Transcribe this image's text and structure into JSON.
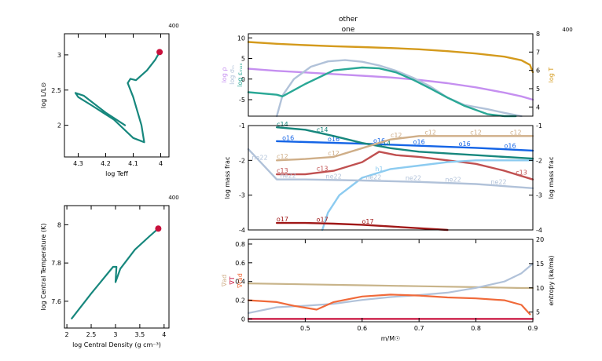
{
  "header": {
    "title_top": "other",
    "title_sub": "one",
    "model_number": "400"
  },
  "colors": {
    "teal": "#17877d",
    "red_marker": "#c8103c",
    "gold": "#d49a1c",
    "lilac": "#c58ff0",
    "steel": "#b1c2d9",
    "sea": "#2aa896",
    "blue": "#1464e6",
    "sky": "#8ccbf0",
    "brick": "#c05050",
    "tan": "#cfae88",
    "maroon": "#a01818",
    "green": "#1f8a4c",
    "orange": "#f06a3a",
    "khaki": "#c8b48a",
    "grid_axis": "#000000"
  },
  "chart_data": [
    {
      "id": "hr",
      "type": "line",
      "model_label": "400",
      "xlabel": "log Teff",
      "ylabel": "log L/L⊙",
      "xlim": [
        4.35,
        3.97
      ],
      "ylim": [
        1.55,
        3.3
      ],
      "xticks": [
        4.3,
        4.2,
        4.1,
        4
      ],
      "xtick_labels": [
        "4.3",
        "4.2",
        "4.1",
        "4"
      ],
      "yticks": [
        2,
        2.5,
        3
      ],
      "ytick_labels": [
        "2",
        "2.5",
        "3"
      ],
      "series": [
        {
          "color": "teal",
          "x": [
            4.13,
            4.2,
            4.28,
            4.31,
            4.3,
            4.25,
            4.17,
            4.1,
            4.06,
            4.07,
            4.1,
            4.12,
            4.11,
            4.09,
            4.05,
            4.02,
            4.004
          ],
          "y": [
            2.0,
            2.18,
            2.42,
            2.46,
            2.4,
            2.28,
            2.08,
            1.82,
            1.76,
            2.0,
            2.4,
            2.6,
            2.66,
            2.64,
            2.78,
            2.93,
            3.04
          ]
        }
      ],
      "marker": {
        "x": 4.004,
        "y": 3.04,
        "color": "red_marker"
      }
    },
    {
      "id": "central",
      "type": "line",
      "model_label": "400",
      "xlabel": "log Central Density (g cm⁻³)",
      "ylabel": "log Central Temperature (K)",
      "xlim": [
        1.95,
        4.1
      ],
      "ylim": [
        7.46,
        8.1
      ],
      "xticks": [
        2,
        2.5,
        3,
        3.5,
        4
      ],
      "xtick_labels": [
        "2",
        "2.5",
        "3",
        "3.5",
        "4"
      ],
      "yticks": [
        7.6,
        7.8,
        8
      ],
      "ytick_labels": [
        "7.6",
        "7.8",
        "8"
      ],
      "series": [
        {
          "color": "teal",
          "x": [
            2.1,
            2.5,
            2.95,
            3.02,
            3.0,
            3.1,
            3.4,
            3.7,
            3.88
          ],
          "y": [
            7.51,
            7.64,
            7.78,
            7.78,
            7.7,
            7.77,
            7.87,
            7.94,
            7.98
          ]
        }
      ],
      "marker": {
        "x": 3.88,
        "y": 7.98,
        "color": "red_marker"
      }
    },
    {
      "id": "profile_top",
      "type": "line",
      "xlim": [
        0.4,
        0.9
      ],
      "ylim": [
        -9,
        11
      ],
      "y2lim": [
        3.5,
        8
      ],
      "yticks": [
        -5,
        0,
        5,
        10
      ],
      "ytick_labels": [
        "-5",
        "0",
        "5",
        "10"
      ],
      "y2ticks": [
        4,
        5,
        6,
        7,
        8
      ],
      "y2tick_labels": [
        "4",
        "5",
        "6",
        "7",
        "8"
      ],
      "left_labels": [
        {
          "text": "log ρ",
          "color": "lilac"
        },
        {
          "text": "log σₘ",
          "color": "steel"
        },
        {
          "text": "log εₘₐₓ",
          "color": "sea"
        }
      ],
      "right_label": {
        "text": "log T",
        "color": "gold"
      },
      "series": [
        {
          "name": "log T",
          "axis": "right",
          "color": "gold",
          "x": [
            0.4,
            0.45,
            0.5,
            0.55,
            0.6,
            0.65,
            0.7,
            0.75,
            0.8,
            0.85,
            0.88,
            0.895,
            0.9
          ],
          "y": [
            7.55,
            7.45,
            7.38,
            7.32,
            7.27,
            7.22,
            7.15,
            7.05,
            6.92,
            6.75,
            6.55,
            6.3,
            5.9
          ]
        },
        {
          "name": "log ρ",
          "axis": "left",
          "color": "lilac",
          "x": [
            0.4,
            0.45,
            0.5,
            0.55,
            0.6,
            0.65,
            0.7,
            0.75,
            0.8,
            0.85,
            0.88,
            0.9
          ],
          "y": [
            2.5,
            2.0,
            1.6,
            1.2,
            0.8,
            0.4,
            -0.2,
            -1.0,
            -2.0,
            -3.3,
            -4.2,
            -5.0
          ]
        },
        {
          "name": "log σₘ",
          "axis": "left",
          "color": "steel",
          "x": [
            0.45,
            0.46,
            0.48,
            0.51,
            0.54,
            0.57,
            0.6,
            0.63,
            0.66,
            0.69,
            0.72,
            0.75,
            0.78,
            0.8,
            0.82,
            0.85,
            0.88
          ],
          "y": [
            -9,
            -4,
            0,
            3,
            4.3,
            4.6,
            4.2,
            3.3,
            2.0,
            0.3,
            -1.8,
            -4.5,
            -6.3,
            -6.8,
            -7.3,
            -8.2,
            -9
          ]
        },
        {
          "name": "log εₘₐₓ",
          "axis": "left",
          "color": "sea",
          "x": [
            0.4,
            0.45,
            0.46,
            0.5,
            0.55,
            0.6,
            0.63,
            0.66,
            0.69,
            0.72,
            0.75,
            0.78,
            0.8,
            0.82,
            0.85,
            0.87
          ],
          "y": [
            -3.2,
            -3.8,
            -4.2,
            -1.2,
            2.1,
            2.8,
            2.6,
            1.6,
            -0.2,
            -2.3,
            -4.5,
            -6.5,
            -7.5,
            -8.5,
            -9,
            -9
          ]
        }
      ]
    },
    {
      "id": "abundances",
      "type": "line",
      "xlim": [
        0.4,
        0.9
      ],
      "ylim": [
        -4,
        -1
      ],
      "yticks": [
        -1,
        -2,
        -3,
        -4
      ],
      "ytick_labels": [
        "-1",
        "-2",
        "-3",
        "-4"
      ],
      "ylabel": "log mass frac",
      "y2label": "log mass frac",
      "series": [
        {
          "name": "o16",
          "color": "blue",
          "x": [
            0.45,
            0.6,
            0.7,
            0.8,
            0.9
          ],
          "y": [
            -1.45,
            -1.52,
            -1.58,
            -1.64,
            -1.72
          ],
          "label_xs": [
            0.47,
            0.55,
            0.63,
            0.7,
            0.78,
            0.86
          ]
        },
        {
          "name": "c14",
          "color": "teal",
          "x": [
            0.45,
            0.5,
            0.55,
            0.6,
            0.65,
            0.7,
            0.8,
            0.9
          ],
          "y": [
            -1.05,
            -1.12,
            -1.3,
            -1.5,
            -1.65,
            -1.75,
            -1.85,
            -1.95
          ],
          "label_xs": [
            0.46,
            0.53,
            0.64
          ]
        },
        {
          "name": "c12",
          "color": "tan",
          "x": [
            0.45,
            0.5,
            0.55,
            0.6,
            0.65,
            0.7,
            0.8,
            0.9
          ],
          "y": [
            -2.0,
            -1.96,
            -1.9,
            -1.65,
            -1.4,
            -1.3,
            -1.3,
            -1.3
          ],
          "label_xs": [
            0.46,
            0.55,
            0.66,
            0.72,
            0.8,
            0.87
          ]
        },
        {
          "name": "c13",
          "color": "brick",
          "x": [
            0.45,
            0.5,
            0.55,
            0.6,
            0.63,
            0.66,
            0.7,
            0.75,
            0.8,
            0.85,
            0.9
          ],
          "y": [
            -2.4,
            -2.4,
            -2.3,
            -2.05,
            -1.75,
            -1.85,
            -1.9,
            -2.0,
            -2.1,
            -2.3,
            -2.55
          ],
          "label_xs": [
            0.46,
            0.53,
            0.88
          ]
        },
        {
          "name": "h1",
          "color": "sky",
          "x": [
            0.53,
            0.54,
            0.56,
            0.6,
            0.65,
            0.7,
            0.75,
            0.8,
            0.9
          ],
          "y": [
            -4,
            -3.5,
            -3.0,
            -2.5,
            -2.25,
            -2.15,
            -2.05,
            -2.0,
            -2.0
          ],
          "label_xs": [
            0.63
          ]
        },
        {
          "name": "ne22",
          "color": "steel",
          "x": [
            0.4,
            0.45,
            0.5,
            0.6,
            0.7,
            0.8,
            0.9
          ],
          "y": [
            -1.68,
            -2.55,
            -2.55,
            -2.58,
            -2.62,
            -2.68,
            -2.8
          ],
          "label_xs": [
            0.42,
            0.47,
            0.55,
            0.62,
            0.69,
            0.76,
            0.84
          ]
        },
        {
          "name": "o17",
          "color": "maroon",
          "x": [
            0.45,
            0.5,
            0.55,
            0.6,
            0.65,
            0.7,
            0.75
          ],
          "y": [
            -3.8,
            -3.8,
            -3.82,
            -3.85,
            -3.9,
            -3.95,
            -4
          ],
          "label_xs": [
            0.46,
            0.53,
            0.61
          ]
        }
      ]
    },
    {
      "id": "gradients",
      "type": "line",
      "xlim": [
        0.4,
        0.9
      ],
      "ylim": [
        -0.03,
        0.85
      ],
      "y2lim": [
        3,
        20
      ],
      "xticks": [
        0.5,
        0.6,
        0.7,
        0.8,
        0.9
      ],
      "xtick_labels": [
        "0.5",
        "0.6",
        "0.7",
        "0.8",
        "0.9"
      ],
      "yticks": [
        0,
        0.2,
        0.4,
        0.6,
        0.8
      ],
      "ytick_labels": [
        "0",
        "0.2",
        "0.4",
        "0.6",
        "0.8"
      ],
      "y2ticks": [
        5,
        10,
        15,
        20
      ],
      "y2tick_labels": [
        "5",
        "10",
        "15",
        "20"
      ],
      "xlabel": "m/M☉",
      "left_labels": [
        {
          "text": "∇ₐₓ",
          "color": "tan"
        },
        {
          "text": "∇ₜ",
          "color": "red_marker"
        },
        {
          "text": "∇ᵣₐₓ",
          "color": "orange"
        }
      ],
      "left_label_texts": [
        "∇ad",
        "∇T",
        "∇rad"
      ],
      "right_label": {
        "text": "entropy (kʙ/mʙ)",
        "color": "grid_axis"
      },
      "series": [
        {
          "name": "∇ad",
          "axis": "left",
          "color": "khaki",
          "x": [
            0.4,
            0.5,
            0.6,
            0.7,
            0.8,
            0.88,
            0.9
          ],
          "y": [
            0.38,
            0.37,
            0.36,
            0.35,
            0.34,
            0.33,
            0.33
          ]
        },
        {
          "name": "entropy",
          "axis": "right",
          "color": "steel",
          "x": [
            0.4,
            0.45,
            0.5,
            0.55,
            0.6,
            0.65,
            0.7,
            0.75,
            0.8,
            0.85,
            0.88,
            0.9
          ],
          "y": [
            4.8,
            6.0,
            6.3,
            6.7,
            7.5,
            8.1,
            8.5,
            9.0,
            10.0,
            11.3,
            13.0,
            15.0
          ]
        },
        {
          "name": "∇rad",
          "axis": "left",
          "color": "orange",
          "x": [
            0.4,
            0.45,
            0.48,
            0.52,
            0.55,
            0.6,
            0.65,
            0.7,
            0.75,
            0.8,
            0.85,
            0.88,
            0.895
          ],
          "y": [
            0.2,
            0.18,
            0.14,
            0.1,
            0.18,
            0.24,
            0.26,
            0.25,
            0.23,
            0.22,
            0.2,
            0.15,
            0.05
          ]
        },
        {
          "name": "∇T",
          "axis": "left",
          "color": "red_marker",
          "x": [
            0.4,
            0.45,
            0.5,
            0.55,
            0.6,
            0.7,
            0.8,
            0.9
          ],
          "y": [
            0.0,
            0.0,
            0.0,
            0.0,
            0.0,
            0.0,
            0.0,
            0.0
          ]
        }
      ]
    }
  ]
}
